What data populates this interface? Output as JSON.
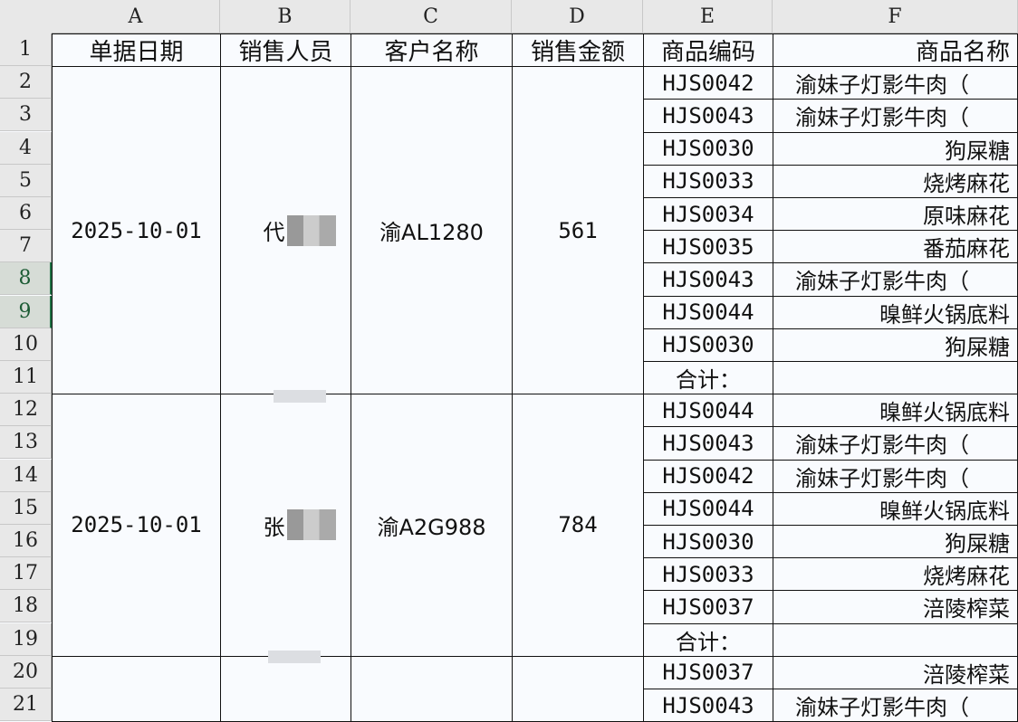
{
  "columns": [
    "A",
    "B",
    "C",
    "D",
    "E",
    "F"
  ],
  "rows": [
    "1",
    "2",
    "3",
    "4",
    "5",
    "6",
    "7",
    "8",
    "9",
    "10",
    "11",
    "12",
    "13",
    "14",
    "15",
    "16",
    "17",
    "18",
    "19",
    "20",
    "21"
  ],
  "headers": {
    "date": "单据日期",
    "salesperson": "销售人员",
    "customer": "客户名称",
    "amount": "销售金额",
    "code": "商品编码",
    "name": "商品名称"
  },
  "groups": [
    {
      "date": "2025-10-01",
      "salesperson": "代",
      "customer": "渝AL1280",
      "amount": "561"
    },
    {
      "date": "2025-10-01",
      "salesperson": "张",
      "customer": "渝A2G988",
      "amount": "784"
    }
  ],
  "items": [
    {
      "code": "HJS0042",
      "name": "渝妹子灯影牛肉（"
    },
    {
      "code": "HJS0043",
      "name": "渝妹子灯影牛肉（"
    },
    {
      "code": "HJS0030",
      "name": "狗屎糖"
    },
    {
      "code": "HJS0033",
      "name": "烧烤麻花"
    },
    {
      "code": "HJS0034",
      "name": "原味麻花"
    },
    {
      "code": "HJS0035",
      "name": "番茄麻花"
    },
    {
      "code": "HJS0043",
      "name": "渝妹子灯影牛肉（"
    },
    {
      "code": "HJS0044",
      "name": "暞鲜火锅底料"
    },
    {
      "code": "HJS0030",
      "name": "狗屎糖"
    },
    {
      "code": "合计：",
      "name": ""
    },
    {
      "code": "HJS0044",
      "name": "暞鲜火锅底料"
    },
    {
      "code": "HJS0043",
      "name": "渝妹子灯影牛肉（"
    },
    {
      "code": "HJS0042",
      "name": "渝妹子灯影牛肉（"
    },
    {
      "code": "HJS0044",
      "name": "暞鲜火锅底料"
    },
    {
      "code": "HJS0030",
      "name": "狗屎糖"
    },
    {
      "code": "HJS0033",
      "name": "烧烤麻花"
    },
    {
      "code": "HJS0037",
      "name": "涪陵榨菜"
    },
    {
      "code": "合计：",
      "name": ""
    },
    {
      "code": "HJS0037",
      "name": "涪陵榨菜"
    },
    {
      "code": "HJS0043",
      "name": "渝妹子灯影牛肉（"
    }
  ],
  "selected_rows": [
    "8",
    "9"
  ],
  "colors": {
    "grid": "#111111",
    "header_bg": "#e8e8e8",
    "selection": "#217346"
  }
}
